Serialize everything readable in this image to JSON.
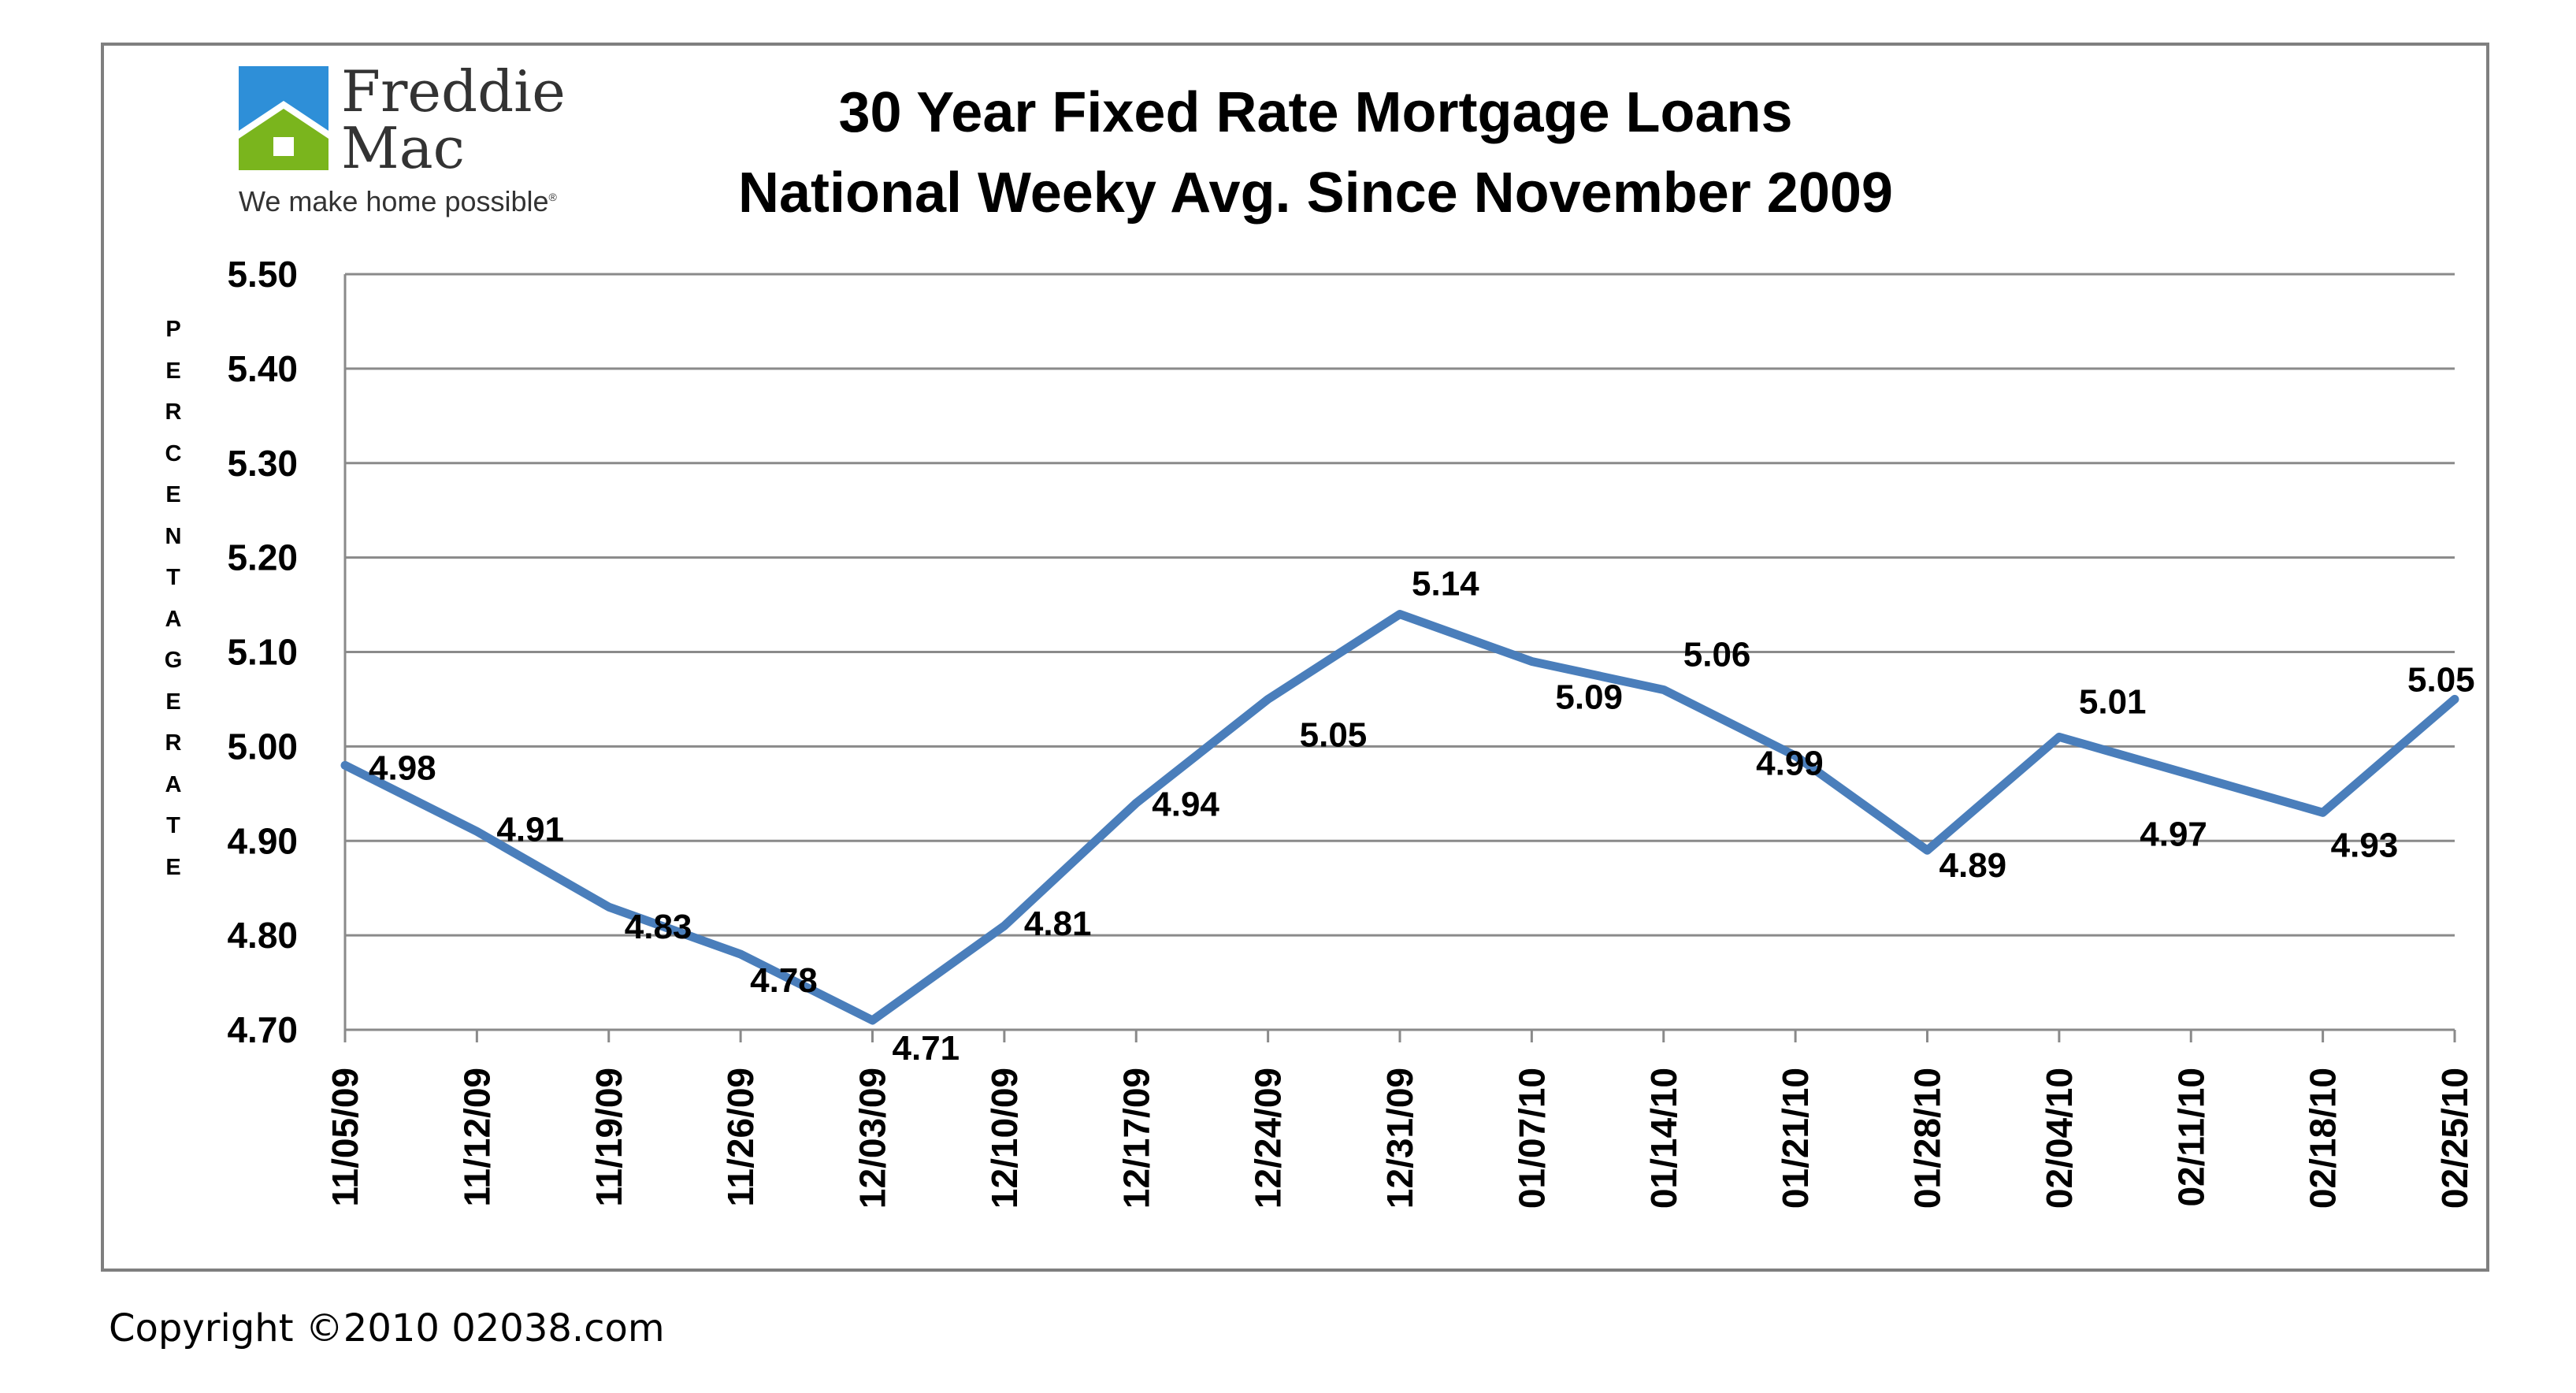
{
  "logo": {
    "line1": "Freddie",
    "line2": "Mac",
    "tagline": "We make home possible",
    "tagline_mark": "®",
    "colors": {
      "roof": "#2e8fd8",
      "house": "#7ab51d"
    }
  },
  "copyright": "Copyright ©2010 02038.com",
  "chart_data": {
    "type": "line",
    "title": "30 Year Fixed Rate Mortgage Loans",
    "subtitle": "National Weeky Avg. Since November 2009",
    "ylabel": "PERCENTAGE RATE",
    "xlabel": "",
    "ylim": [
      4.7,
      5.5
    ],
    "yticks": [
      "5.50",
      "5.40",
      "5.30",
      "5.20",
      "5.10",
      "5.00",
      "4.90",
      "4.80",
      "4.70"
    ],
    "grid": true,
    "line_color": "#4a7ebb",
    "categories": [
      "11/05/09",
      "11/12/09",
      "11/19/09",
      "11/26/09",
      "12/03/09",
      "12/10/09",
      "12/17/09",
      "12/24/09",
      "12/31/09",
      "01/07/10",
      "01/14/10",
      "01/21/10",
      "01/28/10",
      "02/04/10",
      "02/11/10",
      "02/18/10",
      "02/25/10"
    ],
    "series": [
      {
        "values": [
          4.98,
          4.91,
          4.83,
          4.78,
          4.71,
          4.81,
          4.94,
          5.05,
          5.14,
          5.09,
          5.06,
          4.99,
          4.89,
          5.01,
          4.97,
          4.93,
          5.05
        ],
        "labels": [
          "4.98",
          "4.91",
          "4.83",
          "4.78",
          "4.71",
          "4.81",
          "4.94",
          "5.05",
          "5.14",
          "5.09",
          "5.06",
          "4.99",
          "4.89",
          "5.01",
          "4.97",
          "4.93",
          "5.05"
        ]
      }
    ]
  }
}
